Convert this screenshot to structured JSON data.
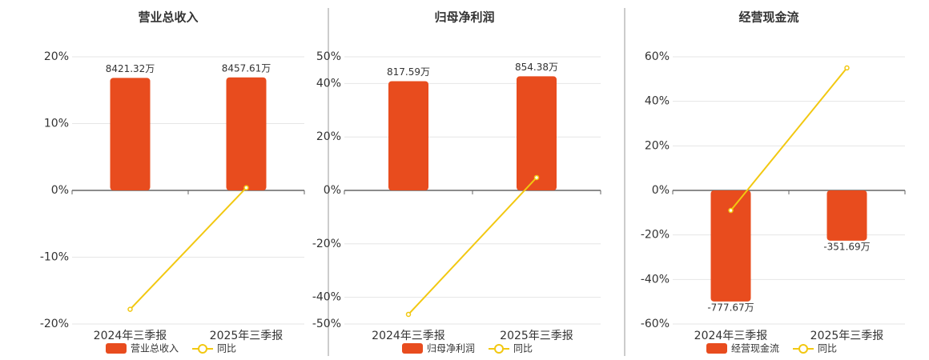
{
  "chart_data": [
    {
      "type": "bar",
      "title": "营业总收入",
      "categories": [
        "2024年三季报",
        "2025年三季报"
      ],
      "series": [
        {
          "name": "营业总收入",
          "type": "bar",
          "axis": "y2",
          "color": "#e84c1e",
          "values": [
            8421.32,
            8457.61
          ],
          "value_labels": [
            "8421.32万",
            "8457.61万"
          ]
        },
        {
          "name": "同比",
          "type": "line",
          "color": "#f2c811",
          "values": [
            -17.8,
            0.4
          ]
        }
      ],
      "ylim": [
        -20,
        20
      ],
      "yticks": [
        {
          "value": -20,
          "label": "-20%"
        },
        {
          "value": -10,
          "label": "-10%"
        },
        {
          "value": 0,
          "label": "0%"
        },
        {
          "value": 10,
          "label": "10%"
        },
        {
          "value": 20,
          "label": "20%"
        }
      ],
      "y2lim": [
        -10000,
        10000
      ],
      "grid": true
    },
    {
      "type": "bar",
      "title": "归母净利润",
      "categories": [
        "2024年三季报",
        "2025年三季报"
      ],
      "series": [
        {
          "name": "归母净利润",
          "type": "bar",
          "axis": "y2",
          "color": "#e84c1e",
          "values": [
            817.59,
            854.38
          ],
          "value_labels": [
            "817.59万",
            "854.38万"
          ]
        },
        {
          "name": "同比",
          "type": "line",
          "color": "#f2c811",
          "values": [
            -46.4,
            4.8
          ]
        }
      ],
      "ylim": [
        -50,
        50
      ],
      "yticks": [
        {
          "value": -50,
          "label": "-50%"
        },
        {
          "value": -40,
          "label": "-40%"
        },
        {
          "value": -20,
          "label": "-20%"
        },
        {
          "value": 0,
          "label": "0%"
        },
        {
          "value": 20,
          "label": "20%"
        },
        {
          "value": 40,
          "label": "40%"
        },
        {
          "value": 50,
          "label": "50%"
        }
      ],
      "y2lim": [
        -1000,
        1000
      ],
      "grid": true
    },
    {
      "type": "bar",
      "title": "经营现金流",
      "categories": [
        "2024年三季报",
        "2025年三季报"
      ],
      "series": [
        {
          "name": "经营现金流",
          "type": "bar",
          "axis": "y2",
          "color": "#e84c1e",
          "values": [
            -777.67,
            -351.69
          ],
          "value_labels": [
            "-777.67万",
            "-351.69万"
          ]
        },
        {
          "name": "同比",
          "type": "line",
          "color": "#f2c811",
          "values": [
            -9.0,
            55
          ]
        }
      ],
      "ylim": [
        -60,
        60
      ],
      "yticks": [
        {
          "value": -60,
          "label": "-60%"
        },
        {
          "value": -40,
          "label": "-40%"
        },
        {
          "value": -20,
          "label": "-20%"
        },
        {
          "value": 0,
          "label": "0%"
        },
        {
          "value": 20,
          "label": "20%"
        },
        {
          "value": 40,
          "label": "40%"
        },
        {
          "value": 60,
          "label": "60%"
        }
      ],
      "y2lim": [
        -935,
        935
      ],
      "grid": true
    }
  ]
}
